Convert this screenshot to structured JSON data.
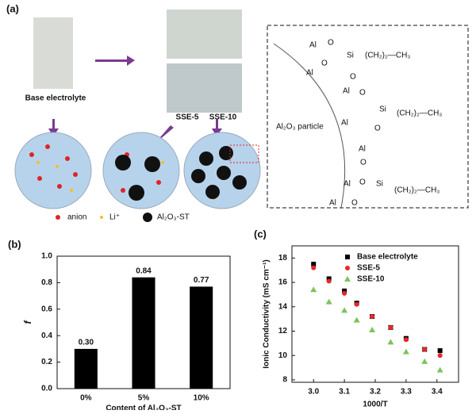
{
  "panel_a": {
    "label": "(a)",
    "photo_labels": [
      "Base electrolyte",
      "SSE-5",
      "SSE-10"
    ],
    "particle_label": "Al₂O₃  particle",
    "legend": [
      "anion",
      "Li⁺",
      "Al₂O₃-ST"
    ],
    "chem": [
      "Al",
      "O",
      "Si",
      "(CH₂)₂—CH₃",
      "O",
      "Al",
      "O",
      "Al",
      "O",
      "Si",
      "(CH₂)₂—CH₃",
      "O",
      "Al",
      "Al",
      "O",
      "Al",
      "O",
      "Si",
      "(CH₂)₂—CH₃",
      "Al",
      "O"
    ]
  },
  "chart_data": [
    {
      "type": "bar",
      "panel": "(b)",
      "categories": [
        "0%",
        "5%",
        "10%"
      ],
      "values": [
        0.3,
        0.84,
        0.77
      ],
      "value_labels": [
        "0.30",
        "0.84",
        "0.77"
      ],
      "color": "#000000",
      "ylim": [
        0,
        1.0
      ],
      "yticks": [
        {
          "value": 0,
          "label": "0.0"
        },
        {
          "value": 0.2,
          "label": "0.2"
        },
        {
          "value": 0.4,
          "label": "0.4"
        },
        {
          "value": 0.6,
          "label": "0.6"
        },
        {
          "value": 0.8,
          "label": "0.8"
        },
        {
          "value": 1.0,
          "label": "1.0"
        }
      ],
      "ylabel": "f",
      "xlabel": "Content of Al₂O₃-ST"
    },
    {
      "type": "scatter",
      "panel": "(c)",
      "x": [
        3.0,
        3.05,
        3.1,
        3.14,
        3.19,
        3.25,
        3.3,
        3.36,
        3.41
      ],
      "series": [
        {
          "name": "Base electrolyte",
          "color": "#000000",
          "marker": "square",
          "values": [
            17.5,
            16.3,
            15.3,
            14.3,
            13.2,
            12.3,
            11.4,
            10.5,
            10.4
          ]
        },
        {
          "name": "SSE-5",
          "color": "#e8262a",
          "marker": "circle",
          "values": [
            17.2,
            16.1,
            15.1,
            14.2,
            13.2,
            12.3,
            11.3,
            10.5,
            10.0
          ]
        },
        {
          "name": "SSE-10",
          "color": "#7dc35c",
          "marker": "triangle",
          "values": [
            15.4,
            14.4,
            13.7,
            12.9,
            12.1,
            11.1,
            10.3,
            9.5,
            8.8
          ]
        }
      ],
      "xlim": [
        2.93,
        3.47
      ],
      "xticks": [
        {
          "value": 3.0,
          "label": "3.0"
        },
        3.1,
        3.2,
        3.3,
        3.4
      ],
      "ylim": [
        7.8,
        19
      ],
      "yticks": [
        8,
        10,
        12,
        14,
        16,
        18
      ],
      "xlabel": "1000/T",
      "ylabel": "Ionic Conductivity (mS cm⁻¹)",
      "legend": "upper right"
    }
  ]
}
